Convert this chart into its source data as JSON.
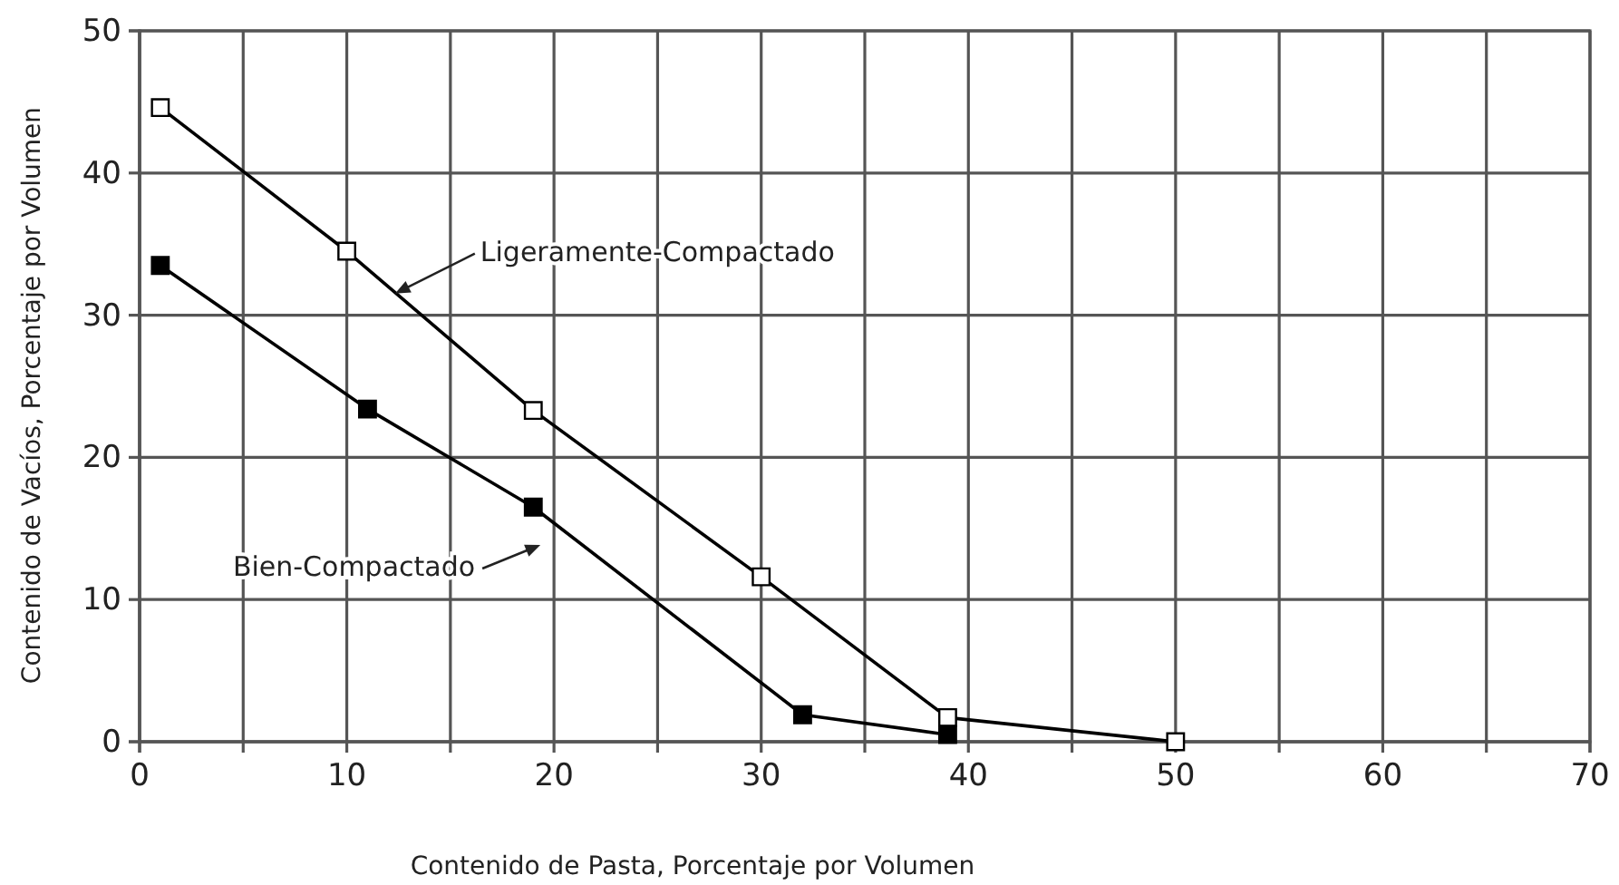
{
  "chart_data": {
    "type": "line",
    "xlabel": "Contenido de Pasta, Porcentaje por Volumen",
    "ylabel": "Contenido de Vacíos, Porcentaje por Volumen",
    "xlim": [
      0,
      70
    ],
    "ylim": [
      0,
      50
    ],
    "xticks": [
      0,
      {
        "value": 5,
        "label": null
      },
      10,
      {
        "value": 15,
        "label": null
      },
      20,
      {
        "value": 25,
        "label": null
      },
      30,
      {
        "value": 35,
        "label": null
      },
      40,
      {
        "value": 45,
        "label": null
      },
      50,
      {
        "value": 55,
        "label": null
      },
      60,
      {
        "value": 65,
        "label": null
      },
      70
    ],
    "yticks": [
      0,
      10,
      20,
      30,
      40,
      50
    ],
    "grid": true,
    "marker": "square",
    "line_style": "solid",
    "series": [
      {
        "name": "Ligeramente-Compactado",
        "color": "#000000",
        "x": [
          1,
          10,
          19,
          30,
          39,
          50
        ],
        "values": [
          44.6,
          34.5,
          23.3,
          11.6,
          1.7,
          0
        ]
      },
      {
        "name": "Bien-Compactado",
        "color": "#000000",
        "x": [
          1,
          11,
          19,
          32,
          39
        ],
        "values": [
          33.5,
          23.4,
          16.5,
          1.9,
          0.5
        ]
      }
    ]
  }
}
